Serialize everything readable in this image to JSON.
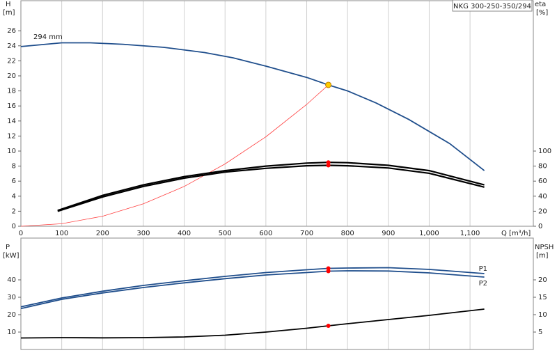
{
  "chart_data": [
    {
      "type": "line",
      "title": "NKG 300-250-350/294",
      "ylabel": "H",
      "ylabel_unit": "[m]",
      "y2label": "eta",
      "y2label_unit": "[%]",
      "xlabel": "Q [m³/h]",
      "xlim": [
        0,
        1255
      ],
      "xticks": [
        0,
        100,
        200,
        300,
        400,
        500,
        600,
        700,
        800,
        900,
        {
          "value": 1000,
          "label": "1,000"
        },
        {
          "value": 1100,
          "label": "1,100"
        }
      ],
      "ylim": [
        0,
        30
      ],
      "yticks": [
        0,
        2,
        4,
        6,
        8,
        10,
        12,
        14,
        16,
        18,
        20,
        22,
        24,
        26
      ],
      "y2lim": [
        0,
        300
      ],
      "y2ticks": [
        0,
        20,
        40,
        60,
        80,
        100
      ],
      "grid": true,
      "series": [
        {
          "name": "294 mm",
          "color": "#1f4e8c",
          "x": [
            0,
            100,
            170,
            250,
            350,
            450,
            520,
            600,
            700,
            753,
            800,
            870,
            950,
            1050,
            1135
          ],
          "values": [
            23.9,
            24.4,
            24.4,
            24.2,
            23.8,
            23.1,
            22.4,
            21.3,
            19.8,
            18.8,
            18.0,
            16.4,
            14.2,
            11.0,
            7.4
          ]
        },
        {
          "color": "#ff4040",
          "x": [
            0,
            100,
            200,
            300,
            400,
            500,
            600,
            700,
            753
          ],
          "values": [
            0,
            0.33,
            1.33,
            2.98,
            5.3,
            8.29,
            11.9,
            16.2,
            18.8
          ]
        },
        {
          "color": "#000000",
          "axis": "y2",
          "x": [
            90,
            200,
            300,
            400,
            500,
            600,
            700,
            753,
            800,
            900,
            1000,
            1135
          ],
          "values": [
            21,
            41,
            55,
            66,
            74,
            80,
            84,
            85,
            84.5,
            81,
            74,
            55
          ]
        },
        {
          "color": "#000000",
          "axis": "y2",
          "x": [
            90,
            200,
            300,
            400,
            500,
            600,
            700,
            753,
            800,
            900,
            1000,
            1135
          ],
          "values": [
            20,
            39,
            53,
            64,
            72,
            77,
            80.5,
            81,
            80.5,
            77.5,
            70.5,
            52
          ]
        }
      ],
      "points": [
        {
          "x": 753,
          "y": 18.8,
          "color": "#ffcc00"
        },
        {
          "x": 753,
          "y": 85,
          "axis": "y2",
          "color": "#ff0000"
        },
        {
          "x": 753,
          "y": 81,
          "axis": "y2",
          "color": "#ff0000"
        }
      ]
    },
    {
      "type": "line",
      "ylabel": "P",
      "ylabel_unit": "[kW]",
      "y2label": "NPSH",
      "y2label_unit": "[m]",
      "xlim": [
        0,
        1255
      ],
      "xticks": [
        0,
        100,
        200,
        300,
        400,
        500,
        600,
        700,
        800,
        900,
        1000,
        1100
      ],
      "ylim": [
        0,
        64
      ],
      "yticks": [
        10,
        20,
        30,
        40
      ],
      "y2lim": [
        0,
        32
      ],
      "y2ticks": [
        5,
        10,
        15,
        20
      ],
      "grid": true,
      "series": [
        {
          "name": "P1",
          "color": "#1f4e8c",
          "x": [
            0,
            100,
            200,
            300,
            400,
            500,
            600,
            700,
            753,
            800,
            900,
            1000,
            1135
          ],
          "values": [
            24.5,
            29.6,
            33.5,
            36.8,
            39.5,
            42,
            44.2,
            45.8,
            46.6,
            46.8,
            47,
            46,
            43.6
          ]
        },
        {
          "name": "P2",
          "color": "#1f4e8c",
          "x": [
            0,
            100,
            200,
            300,
            400,
            500,
            600,
            700,
            753,
            800,
            900,
            1000,
            1135
          ],
          "values": [
            23.5,
            28.8,
            32.5,
            35.6,
            38.3,
            40.7,
            42.8,
            44.2,
            45,
            45.2,
            45.1,
            44,
            41.6
          ]
        },
        {
          "color": "#000000",
          "axis": "y2",
          "x": [
            0,
            100,
            200,
            300,
            400,
            500,
            600,
            700,
            753,
            800,
            900,
            1000,
            1135
          ],
          "values": [
            3.3,
            3.4,
            3.35,
            3.4,
            3.6,
            4.1,
            5.0,
            6.1,
            6.8,
            7.4,
            8.6,
            9.8,
            11.6
          ]
        }
      ],
      "points": [
        {
          "x": 753,
          "y": 46.6,
          "color": "#ff0000"
        },
        {
          "x": 753,
          "y": 45,
          "color": "#ff0000"
        },
        {
          "x": 753,
          "y": 6.8,
          "axis": "y2",
          "color": "#ff0000"
        }
      ]
    }
  ]
}
